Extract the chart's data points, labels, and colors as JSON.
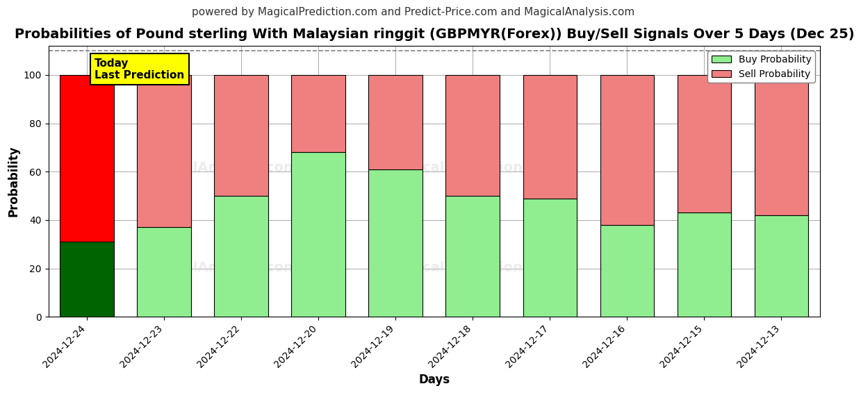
{
  "title": "Probabilities of Pound sterling With Malaysian ringgit (GBPMYR(Forex)) Buy/Sell Signals Over 5 Days (Dec 25)",
  "subtitle": "powered by MagicalPrediction.com and Predict-Price.com and MagicalAnalysis.com",
  "xlabel": "Days",
  "ylabel": "Probability",
  "dates": [
    "2024-12-24",
    "2024-12-23",
    "2024-12-22",
    "2024-12-20",
    "2024-12-19",
    "2024-12-18",
    "2024-12-17",
    "2024-12-16",
    "2024-12-15",
    "2024-12-13"
  ],
  "buy_values": [
    31,
    37,
    50,
    68,
    61,
    50,
    49,
    38,
    43,
    42
  ],
  "sell_values": [
    69,
    63,
    50,
    32,
    39,
    50,
    51,
    62,
    57,
    58
  ],
  "buy_color_today": "#006400",
  "sell_color_today": "#FF0000",
  "buy_color_normal": "#90EE90",
  "sell_color_normal": "#F08080",
  "bar_edge_color": "#000000",
  "bar_width": 0.7,
  "ylim": [
    0,
    112
  ],
  "yticks": [
    0,
    20,
    40,
    60,
    80,
    100
  ],
  "dashed_line_y": 110,
  "today_label_text": "Today\nLast Prediction",
  "today_label_bg": "#FFFF00",
  "watermark_texts": [
    "MagicalAnalysis.com",
    "MagicalPrediction.com"
  ],
  "legend_buy_label": "Buy Probability",
  "legend_sell_label": "Sell Probability",
  "title_fontsize": 14,
  "subtitle_fontsize": 11,
  "axis_label_fontsize": 12,
  "tick_fontsize": 10,
  "background_color": "#ffffff",
  "grid_color": "#aaaaaa"
}
